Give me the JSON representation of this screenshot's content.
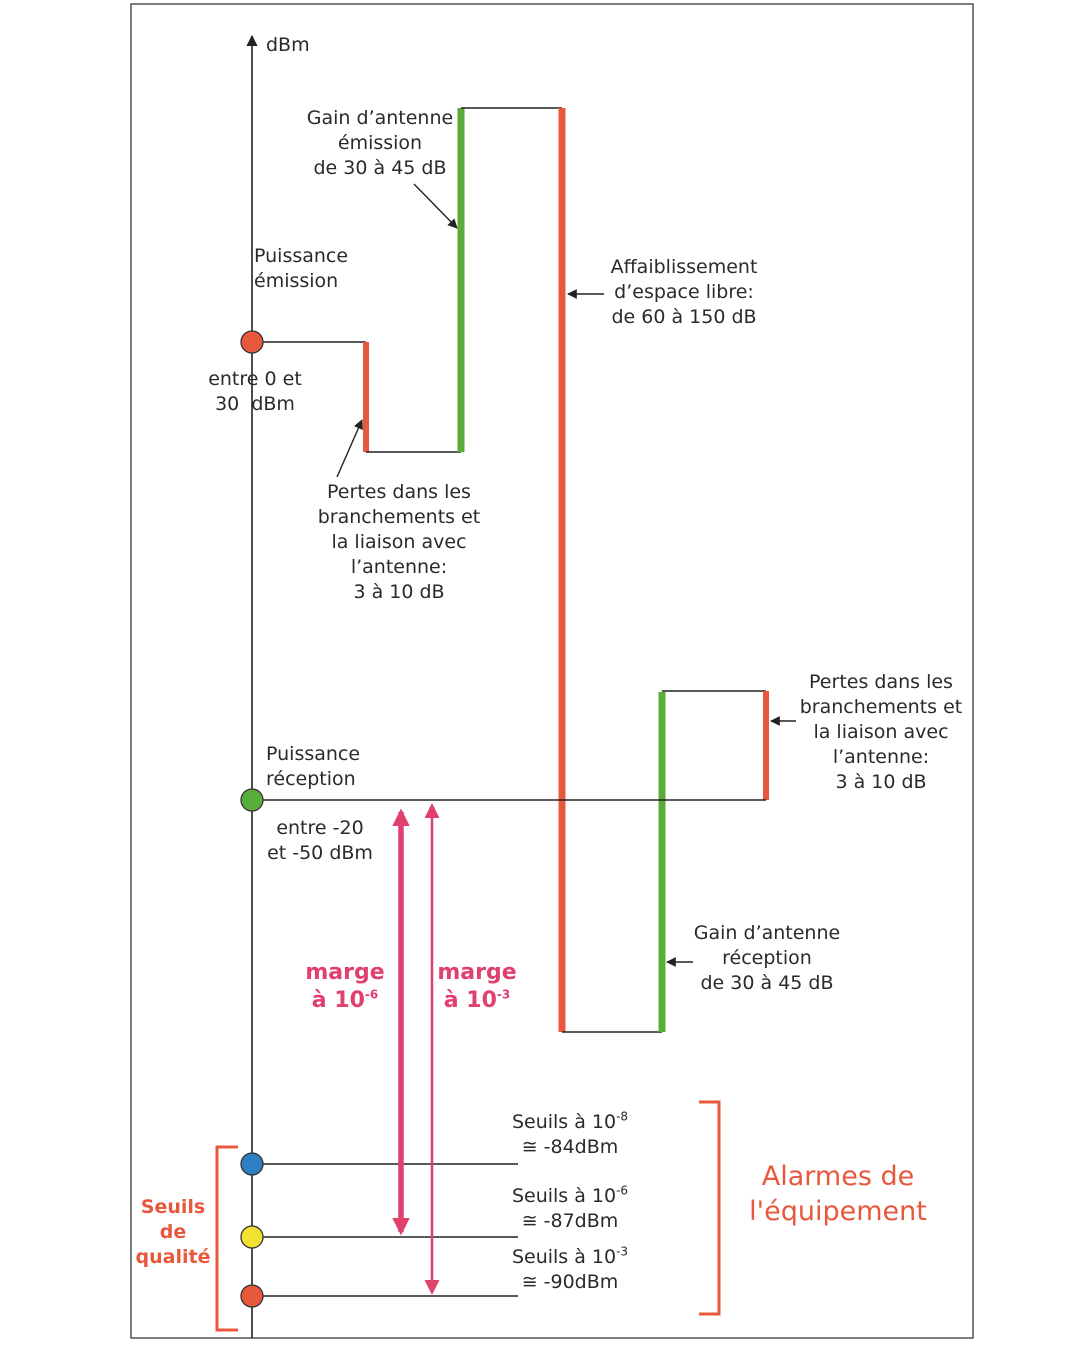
{
  "axis": {
    "unit": "dBm"
  },
  "labels": {
    "gain_emission": [
      "Gain d’antenne",
      "émission",
      "de 30 à 45 dB"
    ],
    "puissance_emission": [
      "Puissance",
      "émission"
    ],
    "range_emission": [
      "entre 0 et",
      "30  dBm"
    ],
    "pertes_emission": [
      "Pertes dans les",
      "branchements et",
      "la liaison avec",
      "l’antenne:",
      "3 à 10 dB"
    ],
    "affaiblissement": [
      "Affaiblissement",
      "d’espace libre:",
      "de 60 à 150 dB"
    ],
    "pertes_reception": [
      "Pertes dans les",
      "branchements et",
      "la liaison avec",
      "l’antenne:",
      "3 à 10 dB"
    ],
    "puissance_reception": [
      "Puissance",
      "réception"
    ],
    "range_reception": [
      "entre -20",
      "et -50 dBm"
    ],
    "gain_reception": [
      "Gain d’antenne",
      "réception",
      "de 30 à 45 dB"
    ]
  },
  "margins": {
    "m6": {
      "word": "marge",
      "prefix": "à 10",
      "exp": "-6"
    },
    "m3": {
      "word": "marge",
      "prefix": "à 10",
      "exp": "-3"
    }
  },
  "thresholds": [
    {
      "prefix": "Seuils à 10",
      "exp": "-8",
      "value": "≅ -84dBm"
    },
    {
      "prefix": "Seuils à 10",
      "exp": "-6",
      "value": "≅ -87dBm"
    },
    {
      "prefix": "Seuils à 10",
      "exp": "-3",
      "value": "≅ -90dBm"
    }
  ],
  "seuils_qualite": [
    "Seuils",
    "de",
    "qualité"
  ],
  "alarmes": [
    "Alarmes de",
    "l'équipement"
  ],
  "colors": {
    "red": "#e8583d",
    "green": "#5aad3a",
    "pink": "#e0406e",
    "blue": "#2f7fc4",
    "yellow": "#f2e234",
    "line": "#222222"
  }
}
